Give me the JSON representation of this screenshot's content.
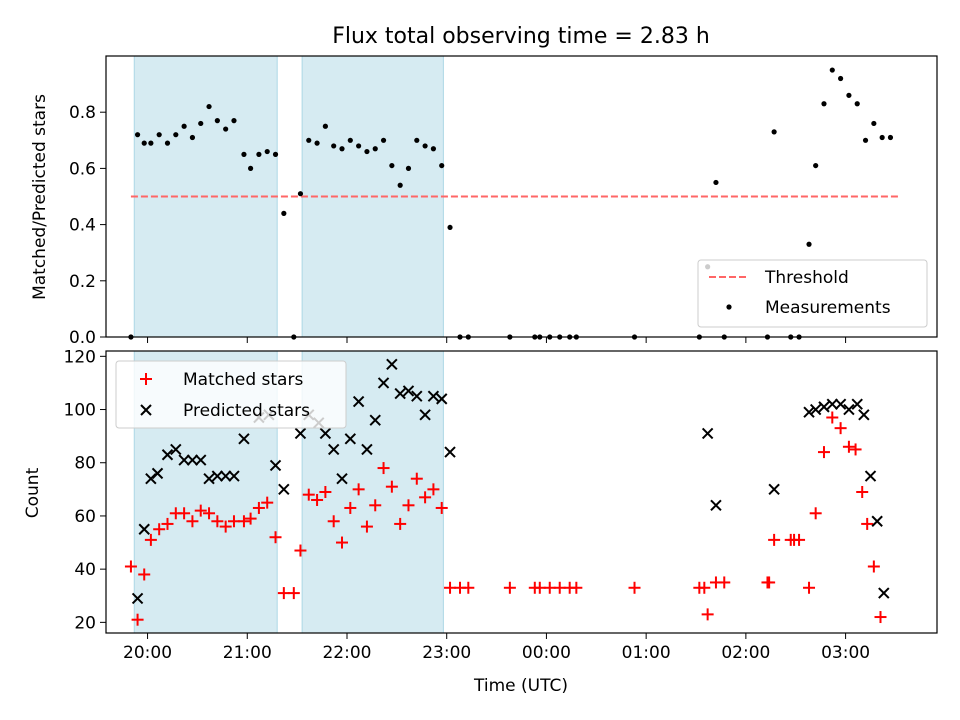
{
  "title": "Flux total observing time = 2.83 h",
  "xlabel": "Time (UTC)",
  "x_tick_labels": [
    "20:00",
    "21:00",
    "22:00",
    "23:00",
    "00:00",
    "01:00",
    "02:00",
    "03:00"
  ],
  "colors": {
    "shade": "#add8e6",
    "threshold": "#ff6666",
    "matched": "#ff0000",
    "predicted": "#000000",
    "measurements": "#000000"
  },
  "chart_data": [
    {
      "type": "scatter",
      "ylabel": "Matched/Predicted stars",
      "ylim": [
        0,
        1.0
      ],
      "y_ticks": [
        0.0,
        0.2,
        0.4,
        0.6,
        0.8
      ],
      "xlim": [
        "19:35",
        "03:55"
      ],
      "shaded_ranges": [
        [
          "19:52",
          "21:18"
        ],
        [
          "21:33",
          "22:58"
        ]
      ],
      "threshold": {
        "name": "Threshold",
        "value": 0.5,
        "x_range": [
          "19:50",
          "03:33"
        ]
      },
      "legend": {
        "placement": "lower-right",
        "entries": [
          "Threshold",
          "Measurements"
        ]
      },
      "series": [
        {
          "name": "Measurements",
          "marker": "dot",
          "points": [
            [
              "19:50",
              0.0
            ],
            [
              "19:54",
              0.72
            ],
            [
              "19:58",
              0.69
            ],
            [
              "20:02",
              0.69
            ],
            [
              "20:07",
              0.72
            ],
            [
              "20:12",
              0.69
            ],
            [
              "20:17",
              0.72
            ],
            [
              "20:22",
              0.75
            ],
            [
              "20:27",
              0.71
            ],
            [
              "20:32",
              0.76
            ],
            [
              "20:37",
              0.82
            ],
            [
              "20:42",
              0.77
            ],
            [
              "20:47",
              0.74
            ],
            [
              "20:52",
              0.77
            ],
            [
              "20:58",
              0.65
            ],
            [
              "21:02",
              0.6
            ],
            [
              "21:07",
              0.65
            ],
            [
              "21:12",
              0.66
            ],
            [
              "21:17",
              0.65
            ],
            [
              "21:22",
              0.44
            ],
            [
              "21:28",
              0.0
            ],
            [
              "21:32",
              0.51
            ],
            [
              "21:37",
              0.7
            ],
            [
              "21:42",
              0.69
            ],
            [
              "21:47",
              0.75
            ],
            [
              "21:52",
              0.68
            ],
            [
              "21:57",
              0.67
            ],
            [
              "22:02",
              0.7
            ],
            [
              "22:07",
              0.68
            ],
            [
              "22:12",
              0.66
            ],
            [
              "22:17",
              0.67
            ],
            [
              "22:22",
              0.7
            ],
            [
              "22:27",
              0.61
            ],
            [
              "22:32",
              0.54
            ],
            [
              "22:37",
              0.6
            ],
            [
              "22:42",
              0.7
            ],
            [
              "22:47",
              0.68
            ],
            [
              "22:52",
              0.67
            ],
            [
              "22:57",
              0.61
            ],
            [
              "23:02",
              0.39
            ],
            [
              "23:08",
              0.0
            ],
            [
              "23:13",
              0.0
            ],
            [
              "23:38",
              0.0
            ],
            [
              "23:53",
              0.0
            ],
            [
              "23:56",
              0.0
            ],
            [
              "00:02",
              0.0
            ],
            [
              "00:08",
              0.0
            ],
            [
              "00:14",
              0.0
            ],
            [
              "00:18",
              0.0
            ],
            [
              "00:53",
              0.0
            ],
            [
              "01:32",
              0.0
            ],
            [
              "01:37",
              0.25
            ],
            [
              "01:42",
              0.55
            ],
            [
              "01:47",
              0.0
            ],
            [
              "02:13",
              0.0
            ],
            [
              "02:17",
              0.73
            ],
            [
              "02:27",
              0.0
            ],
            [
              "02:32",
              0.0
            ],
            [
              "02:38",
              0.33
            ],
            [
              "02:42",
              0.61
            ],
            [
              "02:47",
              0.83
            ],
            [
              "02:52",
              0.95
            ],
            [
              "02:57",
              0.92
            ],
            [
              "03:02",
              0.86
            ],
            [
              "03:07",
              0.83
            ],
            [
              "03:12",
              0.7
            ],
            [
              "03:17",
              0.76
            ],
            [
              "03:22",
              0.71
            ],
            [
              "03:27",
              0.71
            ]
          ]
        }
      ]
    },
    {
      "type": "scatter",
      "ylabel": "Count",
      "ylim": [
        16,
        122
      ],
      "y_ticks": [
        20,
        40,
        60,
        80,
        100,
        120
      ],
      "xlim": [
        "19:35",
        "03:55"
      ],
      "shaded_ranges": [
        [
          "19:52",
          "21:18"
        ],
        [
          "21:33",
          "22:58"
        ]
      ],
      "legend": {
        "placement": "upper-left",
        "entries": [
          "Matched stars",
          "Predicted stars"
        ]
      },
      "series": [
        {
          "name": "Matched stars",
          "marker": "plus",
          "points": [
            [
              "19:50",
              41
            ],
            [
              "19:54",
              21
            ],
            [
              "19:58",
              38
            ],
            [
              "20:02",
              51
            ],
            [
              "20:07",
              55
            ],
            [
              "20:12",
              57
            ],
            [
              "20:17",
              61
            ],
            [
              "20:22",
              61
            ],
            [
              "20:27",
              58
            ],
            [
              "20:32",
              62
            ],
            [
              "20:37",
              61
            ],
            [
              "20:42",
              58
            ],
            [
              "20:47",
              56
            ],
            [
              "20:52",
              58
            ],
            [
              "20:58",
              58
            ],
            [
              "21:02",
              59
            ],
            [
              "21:07",
              63
            ],
            [
              "21:12",
              65
            ],
            [
              "21:17",
              52
            ],
            [
              "21:22",
              31
            ],
            [
              "21:28",
              31
            ],
            [
              "21:32",
              47
            ],
            [
              "21:37",
              68
            ],
            [
              "21:42",
              66
            ],
            [
              "21:47",
              69
            ],
            [
              "21:52",
              58
            ],
            [
              "21:57",
              50
            ],
            [
              "22:02",
              63
            ],
            [
              "22:07",
              70
            ],
            [
              "22:12",
              56
            ],
            [
              "22:17",
              64
            ],
            [
              "22:22",
              78
            ],
            [
              "22:27",
              71
            ],
            [
              "22:32",
              57
            ],
            [
              "22:37",
              64
            ],
            [
              "22:42",
              74
            ],
            [
              "22:47",
              67
            ],
            [
              "22:52",
              70
            ],
            [
              "22:57",
              63
            ],
            [
              "23:02",
              33
            ],
            [
              "23:08",
              33
            ],
            [
              "23:13",
              33
            ],
            [
              "23:38",
              33
            ],
            [
              "23:53",
              33
            ],
            [
              "23:56",
              33
            ],
            [
              "00:02",
              33
            ],
            [
              "00:08",
              33
            ],
            [
              "00:14",
              33
            ],
            [
              "00:18",
              33
            ],
            [
              "00:53",
              33
            ],
            [
              "01:32",
              33
            ],
            [
              "01:35",
              33
            ],
            [
              "01:37",
              23
            ],
            [
              "01:42",
              35
            ],
            [
              "01:47",
              35
            ],
            [
              "02:13",
              35
            ],
            [
              "02:14",
              35
            ],
            [
              "02:17",
              51
            ],
            [
              "02:27",
              51
            ],
            [
              "02:29",
              51
            ],
            [
              "02:32",
              51
            ],
            [
              "02:38",
              33
            ],
            [
              "02:42",
              61
            ],
            [
              "02:47",
              84
            ],
            [
              "02:52",
              97
            ],
            [
              "02:57",
              93
            ],
            [
              "03:02",
              86
            ],
            [
              "03:06",
              85
            ],
            [
              "03:10",
              69
            ],
            [
              "03:13",
              57
            ],
            [
              "03:17",
              41
            ],
            [
              "03:21",
              22
            ]
          ]
        },
        {
          "name": "Predicted stars",
          "marker": "x",
          "points": [
            [
              "19:54",
              29
            ],
            [
              "19:58",
              55
            ],
            [
              "20:02",
              74
            ],
            [
              "20:06",
              76
            ],
            [
              "20:12",
              83
            ],
            [
              "20:17",
              85
            ],
            [
              "20:22",
              81
            ],
            [
              "20:27",
              81
            ],
            [
              "20:32",
              81
            ],
            [
              "20:37",
              74
            ],
            [
              "20:42",
              75
            ],
            [
              "20:47",
              75
            ],
            [
              "20:52",
              75
            ],
            [
              "20:58",
              89
            ],
            [
              "21:07",
              97
            ],
            [
              "21:13",
              98
            ],
            [
              "21:17",
              79
            ],
            [
              "21:22",
              70
            ],
            [
              "21:32",
              91
            ],
            [
              "21:37",
              98
            ],
            [
              "21:43",
              95
            ],
            [
              "21:47",
              91
            ],
            [
              "21:52",
              85
            ],
            [
              "21:57",
              74
            ],
            [
              "22:02",
              89
            ],
            [
              "22:07",
              103
            ],
            [
              "22:12",
              85
            ],
            [
              "22:17",
              96
            ],
            [
              "22:22",
              110
            ],
            [
              "22:27",
              117
            ],
            [
              "22:32",
              106
            ],
            [
              "22:37",
              107
            ],
            [
              "22:42",
              105
            ],
            [
              "22:47",
              98
            ],
            [
              "22:52",
              105
            ],
            [
              "22:57",
              104
            ],
            [
              "23:02",
              84
            ],
            [
              "01:37",
              91
            ],
            [
              "01:42",
              64
            ],
            [
              "02:17",
              70
            ],
            [
              "02:38",
              99
            ],
            [
              "02:42",
              100
            ],
            [
              "02:47",
              101
            ],
            [
              "02:52",
              102
            ],
            [
              "02:57",
              102
            ],
            [
              "03:02",
              100
            ],
            [
              "03:07",
              102
            ],
            [
              "03:11",
              98
            ],
            [
              "03:15",
              75
            ],
            [
              "03:19",
              58
            ],
            [
              "03:23",
              31
            ]
          ]
        }
      ]
    }
  ]
}
